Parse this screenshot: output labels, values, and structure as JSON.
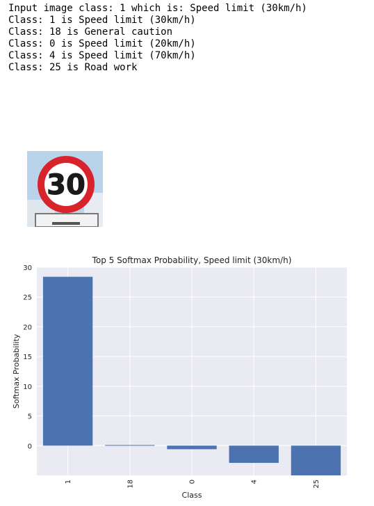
{
  "console": {
    "lines": [
      "Input image class: 1 which is: Speed limit (30km/h)",
      "Class: 1 is Speed limit (30km/h)",
      "Class: 18 is General caution",
      "Class: 0 is Speed limit (20km/h)",
      "Class: 4 is Speed limit (70km/h)",
      "Class: 25 is Road work"
    ]
  },
  "sign_image": {
    "number": "30",
    "colors": {
      "sky": "#b9d3ea",
      "ring": "#d9232b",
      "disc": "#ffffff",
      "text": "#1a1a1a",
      "pole": "#8a8a85"
    }
  },
  "chart_data": {
    "type": "bar",
    "title": "Top 5 Softmax Probability, Speed limit (30km/h)",
    "xlabel": "Class",
    "ylabel": "Softmax Probability",
    "categories": [
      "1",
      "18",
      "0",
      "4",
      "25"
    ],
    "values": [
      28.4,
      0.1,
      -0.6,
      -2.9,
      -5.0
    ],
    "ylim": [
      -5,
      30
    ],
    "yticks": [
      0,
      5,
      10,
      15,
      20,
      25,
      30
    ],
    "grid": true,
    "bar_color": "#4c72b0",
    "background_color": "#eaeaf2"
  }
}
